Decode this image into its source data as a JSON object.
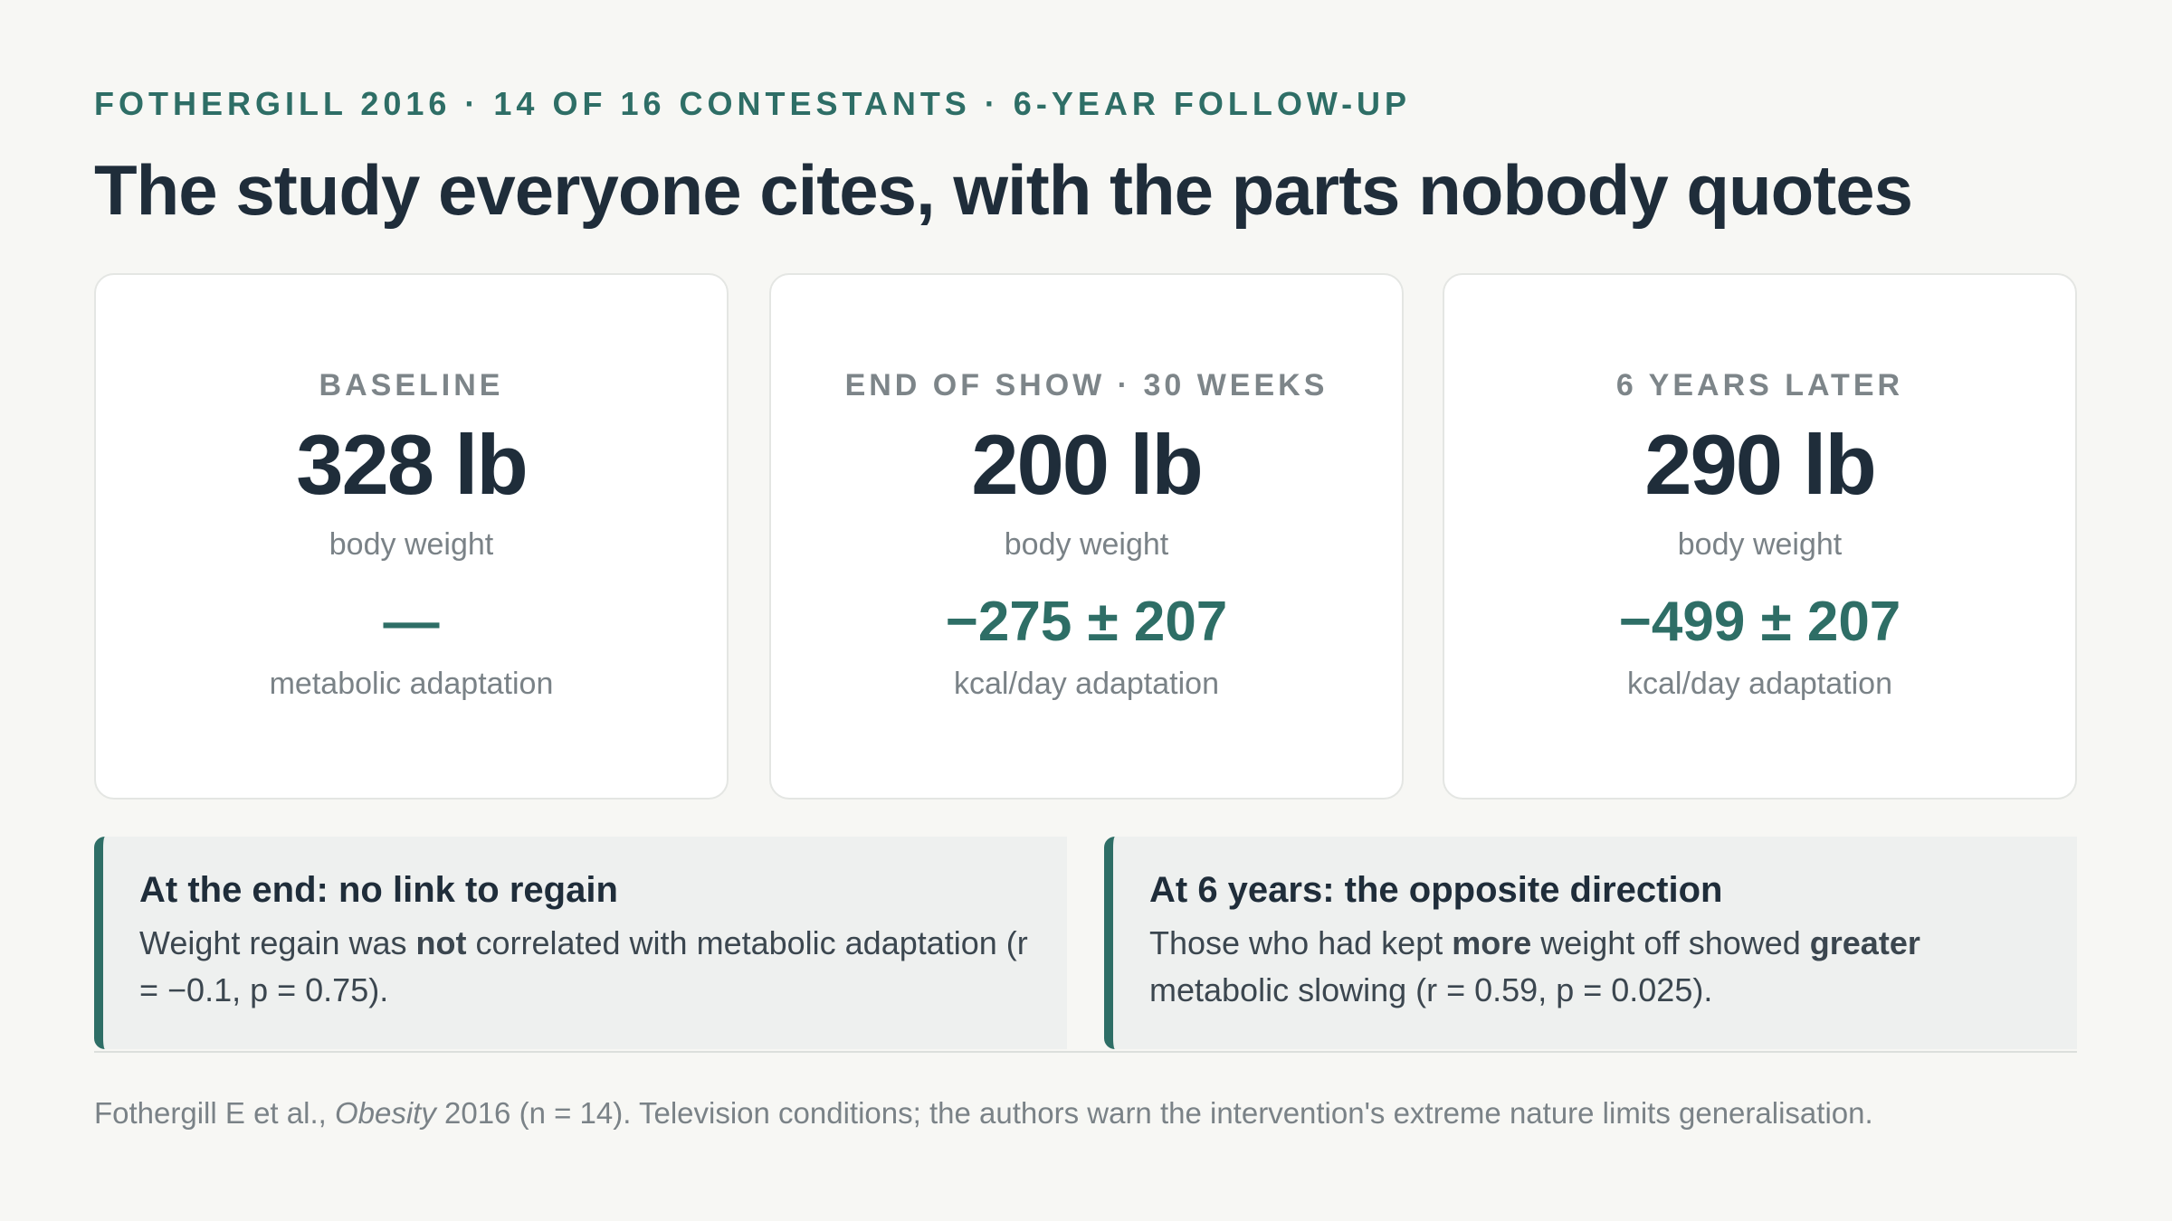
{
  "header": {
    "eyebrow": "FOTHERGILL 2016 · 14 OF 16 CONTESTANTS · 6-YEAR FOLLOW-UP",
    "title": "The study everyone cites, with the parts nobody quotes"
  },
  "cards": [
    {
      "label": "BASELINE",
      "value": "328 lb",
      "value_label": "body weight",
      "metric": "—",
      "metric_label": "metabolic adaptation"
    },
    {
      "label": "END OF SHOW · 30 WEEKS",
      "value": "200 lb",
      "value_label": "body weight",
      "metric": "−275 ± 207",
      "metric_label": "kcal/day adaptation"
    },
    {
      "label": "6 YEARS LATER",
      "value": "290 lb",
      "value_label": "body weight",
      "metric": "−499 ± 207",
      "metric_label": "kcal/day adaptation"
    }
  ],
  "callouts": [
    {
      "heading": "At the end: no link to regain",
      "body": [
        "Weight regain was ",
        "not",
        " correlated with metabolic adaptation (r = −0.1, p = 0.75)."
      ]
    },
    {
      "heading": "At 6 years: the opposite direction",
      "body": [
        "Those who had kept ",
        "more",
        " weight off showed ",
        "greater",
        " metabolic slowing (r = 0.59, p = 0.025)."
      ]
    }
  ],
  "footnote": [
    "Fothergill E et al., ",
    "Obesity",
    " 2016 (n = 14). Television conditions; the authors warn the intervention's extreme nature limits generalisation."
  ]
}
